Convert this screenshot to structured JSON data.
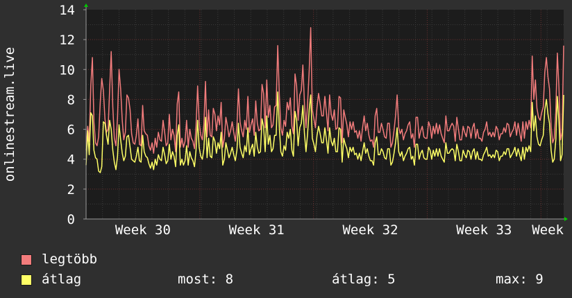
{
  "colors": {
    "background": "#2f2f2f",
    "plot_background": "#1c1c1c",
    "grid_major": "#6b2f2f",
    "grid_minor": "#3c3c3c",
    "axis_arrow": "#00c800",
    "legtobb": "#f27c7c",
    "atlag": "#ffff66"
  },
  "chart_data": {
    "type": "line",
    "ylabel": "onlinestream.live",
    "ylim": [
      0,
      14
    ],
    "yticks": [
      0,
      2,
      4,
      6,
      8,
      10,
      12,
      14
    ],
    "xlim": [
      0,
      4.2
    ],
    "xticks": [
      {
        "label": "Week 30",
        "value": 0.5
      },
      {
        "label": "Week 31",
        "value": 1.5
      },
      {
        "label": "Week 32",
        "value": 2.5
      },
      {
        "label": "Week 33",
        "value": 3.5
      },
      {
        "label": "Week",
        "value": 4.15
      }
    ],
    "grid": true,
    "legend_placement": "bottom-left",
    "series": [
      {
        "name": "legtöbb",
        "color": "#f27c7c",
        "values": [
          4.6,
          6.2,
          5.2,
          8.9,
          10.8,
          6.5,
          5.1,
          4.9,
          5.5,
          7.8,
          9.4,
          8.6,
          6.7,
          5.8,
          6.0,
          8.6,
          11.2,
          7.5,
          5.4,
          4.9,
          6.8,
          10.0,
          8.7,
          6.6,
          5.3,
          5.8,
          8.3,
          8.1,
          7.3,
          5.7,
          5.1,
          5.0,
          5.6,
          6.7,
          5.0,
          4.9,
          7.6,
          5.9,
          5.7,
          5.6,
          4.9,
          4.6,
          5.1,
          4.4,
          5.4,
          4.8,
          5.8,
          5.3,
          5.2,
          6.6,
          5.8,
          4.9,
          5.1,
          7.0,
          5.3,
          6.0,
          5.6,
          4.5,
          7.7,
          8.5,
          4.8,
          5.4,
          4.8,
          5.2,
          6.6,
          4.8,
          6.0,
          5.4,
          5.2,
          4.7,
          6.2,
          8.9,
          6.5,
          5.6,
          5.3,
          6.3,
          9.2,
          5.5,
          7.3,
          5.6,
          5.5,
          7.4,
          7.0,
          5.9,
          6.9,
          6.3,
          7.8,
          4.8,
          5.4,
          6.8,
          6.2,
          5.5,
          5.9,
          6.5,
          5.8,
          5.2,
          6.2,
          8.7,
          6.5,
          5.9,
          5.5,
          6.6,
          6.0,
          8.2,
          5.8,
          6.3,
          6.7,
          5.6,
          7.9,
          6.4,
          5.9,
          6.0,
          9.0,
          8.4,
          6.1,
          9.3,
          6.8,
          7.6,
          6.1,
          6.3,
          7.5,
          7.6,
          11.6,
          8.3,
          6.1,
          5.6,
          6.6,
          6.2,
          7.8,
          7.3,
          8.1,
          6.2,
          5.7,
          9.7,
          8.9,
          6.6,
          8.3,
          8.6,
          10.3,
          7.7,
          6.1,
          7.7,
          9.9,
          12.8,
          7.3,
          6.7,
          6.1,
          7.5,
          8.4,
          7.7,
          6.9,
          6.9,
          8.2,
          7.1,
          5.9,
          8.3,
          7.0,
          6.6,
          7.3,
          6.0,
          6.1,
          8.2,
          8.1,
          5.1,
          7.3,
          6.8,
          6.3,
          5.5,
          6.5,
          6.0,
          6.5,
          5.8,
          5.9,
          5.4,
          5.9,
          5.2,
          6.1,
          6.9,
          5.9,
          6.4,
          5.6,
          5.2,
          5.3,
          4.8,
          6.9,
          7.4,
          5.8,
          5.8,
          6.4,
          6.0,
          5.5,
          5.4,
          6.4,
          6.4,
          4.8,
          5.1,
          5.9,
          6.9,
          8.3,
          6.1,
          5.7,
          6.0,
          5.3,
          5.7,
          5.9,
          6.3,
          6.5,
          5.4,
          5.7,
          4.8,
          6.8,
          6.8,
          5.4,
          5.9,
          6.2,
          5.5,
          5.4,
          5.4,
          6.5,
          6.2,
          5.4,
          6.2,
          5.7,
          6.4,
          5.7,
          6.3,
          5.7,
          5.4,
          5.1,
          6.9,
          5.9,
          5.9,
          6.2,
          6.4,
          6.2,
          5.2,
          6.8,
          6.0,
          5.3,
          5.3,
          6.2,
          5.8,
          5.5,
          6.2,
          6.1,
          5.4,
          6.1,
          6.4,
          5.4,
          6.0,
          5.4,
          5.4,
          5.2,
          5.8,
          6.0,
          6.5,
          5.6,
          5.8,
          5.5,
          5.8,
          5.5,
          6.2,
          6.0,
          5.3,
          5.7,
          5.7,
          6.1,
          5.8,
          6.4,
          6.3,
          5.5,
          5.8,
          6.0,
          6.5,
          5.6,
          6.4,
          5.8,
          5.2,
          6.5,
          5.4,
          6.5,
          6.0,
          6.6,
          6.1,
          10.9,
          8.0,
          9.3,
          7.4,
          6.8,
          6.6,
          7.1,
          7.5,
          9.8,
          10.8,
          9.5,
          8.7,
          6.2,
          5.1,
          5.4,
          7.2,
          11.1,
          8.8,
          5.3,
          5.8,
          11.6
        ]
      },
      {
        "name": "átlag",
        "color": "#ffff66",
        "values": [
          3.6,
          5.9,
          4.3,
          7.1,
          6.9,
          4.6,
          4.1,
          4.0,
          3.2,
          3.1,
          3.5,
          6.5,
          6.4,
          5.6,
          5.0,
          6.6,
          6.0,
          4.6,
          3.8,
          3.3,
          4.2,
          6.3,
          5.3,
          4.4,
          3.9,
          4.2,
          5.5,
          5.6,
          4.8,
          4.0,
          3.9,
          3.8,
          4.2,
          4.8,
          3.9,
          3.8,
          5.6,
          4.5,
          4.2,
          4.1,
          3.7,
          3.4,
          3.8,
          3.3,
          4.0,
          3.6,
          4.3,
          4.0,
          3.9,
          4.8,
          4.3,
          3.7,
          3.9,
          5.0,
          4.0,
          4.5,
          4.2,
          3.5,
          5.6,
          6.3,
          3.6,
          4.0,
          3.6,
          3.9,
          4.9,
          3.6,
          4.5,
          4.1,
          3.9,
          3.5,
          4.6,
          6.6,
          4.8,
          4.2,
          4.0,
          4.7,
          6.8,
          4.1,
          5.4,
          4.2,
          4.1,
          5.5,
          5.2,
          4.4,
          5.1,
          4.7,
          5.8,
          3.6,
          4.0,
          5.1,
          4.6,
          4.1,
          4.4,
          4.8,
          4.3,
          3.9,
          4.6,
          6.4,
          4.8,
          4.4,
          4.1,
          4.9,
          4.5,
          6.1,
          4.3,
          4.7,
          5.0,
          4.2,
          5.8,
          4.8,
          4.4,
          4.5,
          6.7,
          6.2,
          4.5,
          6.9,
          5.0,
          5.6,
          4.5,
          4.7,
          5.6,
          5.6,
          8.5,
          6.1,
          4.5,
          4.2,
          4.9,
          4.6,
          5.8,
          5.4,
          6.0,
          4.6,
          4.2,
          7.2,
          6.6,
          4.9,
          6.1,
          6.4,
          7.6,
          5.7,
          4.5,
          5.7,
          7.3,
          8.3,
          5.4,
          5.0,
          4.5,
          5.6,
          6.2,
          5.7,
          5.1,
          5.1,
          6.1,
          5.3,
          4.4,
          6.1,
          5.2,
          4.9,
          5.4,
          4.5,
          4.5,
          6.1,
          6.0,
          3.8,
          5.4,
          5.0,
          4.7,
          4.1,
          4.8,
          4.5,
          4.8,
          4.3,
          4.4,
          4.0,
          4.4,
          3.9,
          4.5,
          5.1,
          4.4,
          4.7,
          4.2,
          3.9,
          3.9,
          3.6,
          5.1,
          5.5,
          4.3,
          4.3,
          4.7,
          4.5,
          4.1,
          4.0,
          4.7,
          4.7,
          3.6,
          3.8,
          4.4,
          5.1,
          6.1,
          4.5,
          4.2,
          4.5,
          3.9,
          4.2,
          4.4,
          4.7,
          4.8,
          4.0,
          4.2,
          3.6,
          5.0,
          5.0,
          4.0,
          4.4,
          4.6,
          4.1,
          4.0,
          4.0,
          4.8,
          4.6,
          4.0,
          4.6,
          4.2,
          4.7,
          4.2,
          4.7,
          4.2,
          4.0,
          3.8,
          5.1,
          4.4,
          4.4,
          4.6,
          4.7,
          4.6,
          3.9,
          5.0,
          4.5,
          3.9,
          3.9,
          4.6,
          4.3,
          4.1,
          4.6,
          4.5,
          4.0,
          4.5,
          4.7,
          4.0,
          4.5,
          4.0,
          4.0,
          3.9,
          4.3,
          4.5,
          4.8,
          4.2,
          4.3,
          4.1,
          4.3,
          4.1,
          4.6,
          4.5,
          3.9,
          4.2,
          4.2,
          4.5,
          4.3,
          4.7,
          4.7,
          4.1,
          4.3,
          4.5,
          4.8,
          4.2,
          4.7,
          4.3,
          3.9,
          4.8,
          4.0,
          4.8,
          4.5,
          4.9,
          4.5,
          7.8,
          5.9,
          6.9,
          5.5,
          5.0,
          4.9,
          5.3,
          5.6,
          7.3,
          8.0,
          7.0,
          6.4,
          4.6,
          3.8,
          4.0,
          5.3,
          8.2,
          6.5,
          3.9,
          4.3,
          8.3
        ]
      }
    ]
  },
  "legend": {
    "items": [
      {
        "label": "legtöbb"
      },
      {
        "label": "átlag"
      }
    ],
    "stats": {
      "most": "most: 8",
      "atlag": "átlag: 5",
      "max": "max: 9"
    }
  }
}
